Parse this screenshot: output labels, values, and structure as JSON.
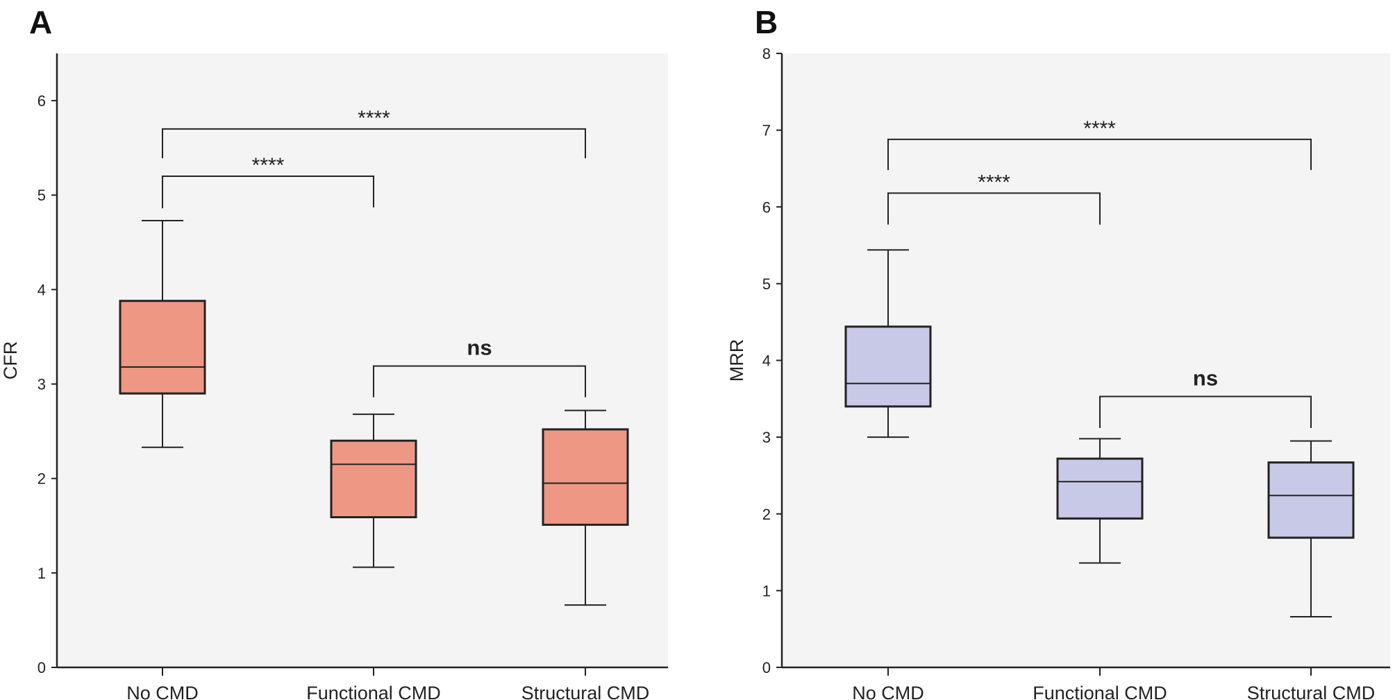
{
  "colors": {
    "plot_bg": "#f4f4f4",
    "box_A": "#ef9785",
    "box_B": "#c8c9e6",
    "stroke": "#222222"
  },
  "chart_data": [
    {
      "type": "box",
      "panel": "A",
      "ylabel": "CFR",
      "xlabel": "",
      "ylim": [
        0,
        6.5
      ],
      "yticks": [
        0,
        1,
        2,
        3,
        4,
        5,
        6
      ],
      "categories": [
        "No CMD",
        "Functional CMD",
        "Structural CMD"
      ],
      "boxes": [
        {
          "min": 2.33,
          "q1": 2.9,
          "median": 3.18,
          "q3": 3.88,
          "max": 4.73
        },
        {
          "min": 1.06,
          "q1": 1.59,
          "median": 2.15,
          "q3": 2.4,
          "max": 2.68
        },
        {
          "min": 0.66,
          "q1": 1.51,
          "median": 1.95,
          "q3": 2.52,
          "max": 2.72
        }
      ],
      "comparisons": [
        {
          "from": 0,
          "to": 2,
          "label": "****",
          "y": 5.7,
          "left_end": 5.39,
          "right_end": 5.39
        },
        {
          "from": 0,
          "to": 1,
          "label": "****",
          "y": 5.2,
          "left_end": 4.86,
          "right_end": 4.87
        },
        {
          "from": 1,
          "to": 2,
          "label": "ns",
          "y": 3.19,
          "left_end": 2.86,
          "right_end": 2.86
        }
      ]
    },
    {
      "type": "box",
      "panel": "B",
      "ylabel": "MRR",
      "xlabel": "",
      "ylim": [
        0,
        8
      ],
      "yticks": [
        0,
        1,
        2,
        3,
        4,
        5,
        6,
        7,
        8
      ],
      "categories": [
        "No CMD",
        "Functional CMD",
        "Structural CMD"
      ],
      "boxes": [
        {
          "min": 3.0,
          "q1": 3.4,
          "median": 3.7,
          "q3": 4.44,
          "max": 5.44
        },
        {
          "min": 1.36,
          "q1": 1.94,
          "median": 2.42,
          "q3": 2.72,
          "max": 2.98
        },
        {
          "min": 0.66,
          "q1": 1.69,
          "median": 2.24,
          "q3": 2.67,
          "max": 2.95
        }
      ],
      "comparisons": [
        {
          "from": 0,
          "to": 2,
          "label": "****",
          "y": 6.88,
          "left_end": 6.48,
          "right_end": 6.48
        },
        {
          "from": 0,
          "to": 1,
          "label": "****",
          "y": 6.18,
          "left_end": 5.77,
          "right_end": 5.77
        },
        {
          "from": 1,
          "to": 2,
          "label": "ns",
          "y": 3.53,
          "left_end": 3.12,
          "right_end": 3.12
        }
      ]
    }
  ]
}
